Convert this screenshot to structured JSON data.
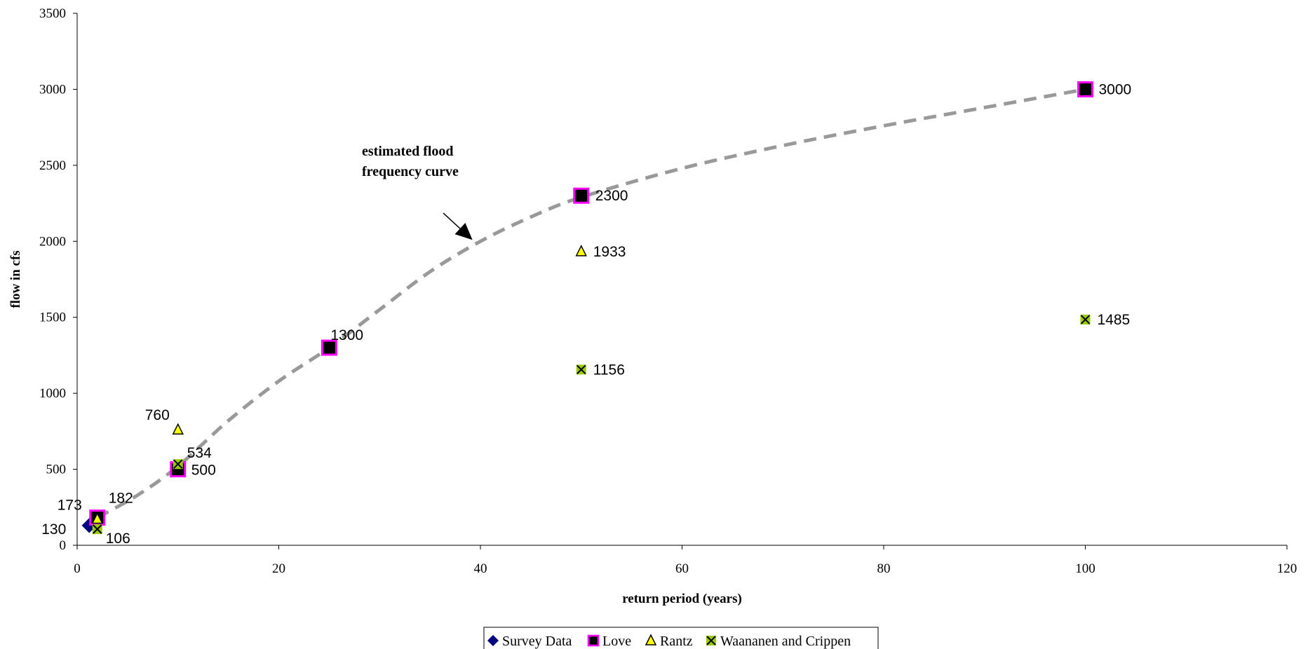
{
  "chart_data": {
    "type": "scatter",
    "xlabel": "return period (years)",
    "ylabel": "flow in cfs",
    "xlim": [
      0,
      120
    ],
    "ylim": [
      0,
      3500
    ],
    "xticks": [
      0,
      20,
      40,
      60,
      80,
      100,
      120
    ],
    "yticks": [
      0,
      500,
      1000,
      1500,
      2000,
      2500,
      3000,
      3500
    ],
    "grid": false,
    "legend_position": "bottom",
    "series": [
      {
        "name": "Survey Data",
        "marker": "diamond",
        "color": "#000080",
        "points": [
          {
            "x": 1.2,
            "y": 130,
            "label": "130"
          }
        ]
      },
      {
        "name": "Love",
        "marker": "square",
        "color": "#000000",
        "edge": "#ff00ff",
        "points": [
          {
            "x": 2,
            "y": 182,
            "label": "182"
          },
          {
            "x": 10,
            "y": 500,
            "label": "500"
          },
          {
            "x": 25,
            "y": 1300,
            "label": "1300"
          },
          {
            "x": 50,
            "y": 2300,
            "label": "2300"
          },
          {
            "x": 100,
            "y": 3000,
            "label": "3000"
          }
        ]
      },
      {
        "name": "Rantz",
        "marker": "triangle",
        "color": "#ffff00",
        "points": [
          {
            "x": 2,
            "y": 173,
            "label": "173"
          },
          {
            "x": 10,
            "y": 760,
            "label": "760"
          },
          {
            "x": 50,
            "y": 1933,
            "label": "1933"
          }
        ]
      },
      {
        "name": "Waananen and Crippen",
        "marker": "x-square",
        "color": "#99cc00",
        "points": [
          {
            "x": 2,
            "y": 106,
            "label": "106"
          },
          {
            "x": 10,
            "y": 534,
            "label": "534"
          },
          {
            "x": 50,
            "y": 1156,
            "label": "1156"
          },
          {
            "x": 100,
            "y": 1485,
            "label": "1485"
          }
        ]
      }
    ],
    "curve": {
      "style": "dashed",
      "color": "#999999",
      "points": [
        {
          "x": 2,
          "y": 182
        },
        {
          "x": 6,
          "y": 330
        },
        {
          "x": 10,
          "y": 520
        },
        {
          "x": 15,
          "y": 820
        },
        {
          "x": 20,
          "y": 1080
        },
        {
          "x": 25,
          "y": 1300
        },
        {
          "x": 30,
          "y": 1550
        },
        {
          "x": 35,
          "y": 1800
        },
        {
          "x": 40,
          "y": 2000
        },
        {
          "x": 45,
          "y": 2160
        },
        {
          "x": 50,
          "y": 2290
        },
        {
          "x": 60,
          "y": 2480
        },
        {
          "x": 70,
          "y": 2630
        },
        {
          "x": 80,
          "y": 2760
        },
        {
          "x": 90,
          "y": 2880
        },
        {
          "x": 100,
          "y": 3000
        }
      ]
    },
    "annotation": {
      "lines": [
        "estimated flood",
        "frequency curve"
      ],
      "arrow_target": {
        "x": 39,
        "y": 2000
      }
    }
  }
}
